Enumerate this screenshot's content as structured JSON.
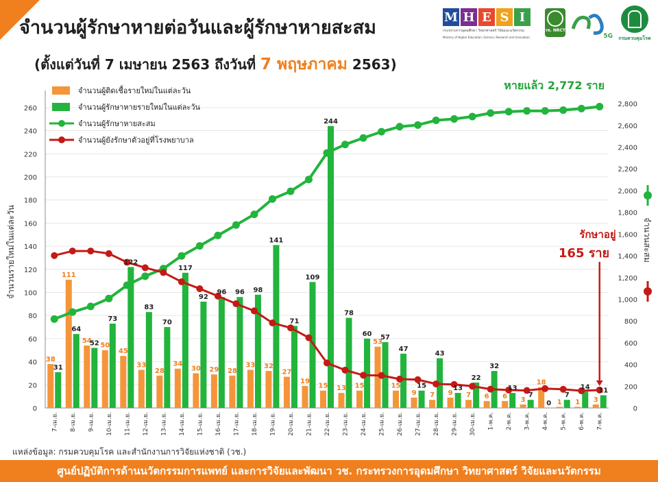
{
  "header": {
    "title": "จำนวนผู้รักษาหายต่อวันและผู้รักษาหายสะสม",
    "subtitle_prefix": "(ตั้งแต่วันที่ 7 เมษายน 2563 ถึงวันที่",
    "subtitle_highlight": "7 พฤษภาคม",
    "subtitle_suffix": "2563)"
  },
  "logos": {
    "mhesi_letters": [
      "M",
      "H",
      "E",
      "S",
      "I"
    ],
    "mhesi_colors": [
      "#1f4e9c",
      "#7a2f8f",
      "#e64a2e",
      "#f0a21c",
      "#3aa04a"
    ],
    "mhesi_caption": "กระทรวงการอุดมศึกษา วิทยาศาสตร์ วิจัยและนวัตกรรม",
    "mhesi_caption_en": "Ministry of Higher Education, Science, Research and Innovation",
    "nrct_label": "วช. NRCT",
    "five_g_label": "5G",
    "ddc_label": "กรมควบคุมโรค"
  },
  "chart_data": {
    "type": "bar+line",
    "categories": [
      "7-เม.ย.",
      "8-เม.ย.",
      "9-เม.ย.",
      "10-เม.ย.",
      "11-เม.ย.",
      "12-เม.ย.",
      "13-เม.ย.",
      "14-เม.ย.",
      "15-เม.ย.",
      "16-เม.ย.",
      "17-เม.ย.",
      "18-เม.ย.",
      "19-เม.ย.",
      "20-เม.ย.",
      "21-เม.ย.",
      "22-เม.ย.",
      "23-เม.ย.",
      "24-เม.ย.",
      "25-เม.ย.",
      "26-เม.ย.",
      "27-เม.ย.",
      "28-เม.ย.",
      "29-เม.ย.",
      "30-เม.ย.",
      "1-พ.ค.",
      "2-พ.ค.",
      "3-พ.ค.",
      "4-พ.ค.",
      "5-พ.ค.",
      "6-พ.ค.",
      "7-พ.ค."
    ],
    "series": [
      {
        "name": "จำนวนผู้ติดเชื้อรายใหม่ในแต่ละวัน",
        "type": "bar",
        "axis": "left",
        "color": "#f5953a",
        "values": [
          38,
          111,
          54,
          50,
          45,
          33,
          28,
          34,
          30,
          29,
          28,
          33,
          32,
          27,
          19,
          15,
          13,
          15,
          53,
          15,
          9,
          7,
          9,
          7,
          6,
          6,
          3,
          18,
          1,
          1,
          3
        ]
      },
      {
        "name": "จำนวนผู้รักษาหายรายใหม่ในแต่ละวัน",
        "type": "bar",
        "axis": "left",
        "color": "#22b43c",
        "values": [
          31,
          64,
          52,
          73,
          122,
          83,
          70,
          117,
          92,
          96,
          96,
          98,
          141,
          71,
          109,
          244,
          78,
          60,
          57,
          47,
          15,
          43,
          13,
          22,
          32,
          13,
          7,
          0,
          7,
          14,
          11
        ]
      },
      {
        "name": "จำนวนผู้รักษาหายสะสม",
        "type": "line",
        "axis": "right",
        "color": "#22b43c",
        "values": [
          818,
          882,
          934,
          1007,
          1129,
          1212,
          1282,
          1399,
          1491,
          1587,
          1683,
          1781,
          1922,
          1993,
          2102,
          2346,
          2424,
          2484,
          2541,
          2588,
          2603,
          2646,
          2659,
          2681,
          2713,
          2726,
          2733,
          2733,
          2740,
          2754,
          2772
        ]
      },
      {
        "name": "จำนวนผู้ยังรักษาตัวอยู่ที่โรงพยาบาล",
        "type": "line",
        "axis": "right",
        "color": "#c41a16",
        "values": [
          1402,
          1444,
          1444,
          1420,
          1340,
          1290,
          1246,
          1161,
          1097,
          1029,
          959,
          893,
          782,
          737,
          646,
          414,
          348,
          301,
          299,
          266,
          260,
          221,
          216,
          200,
          173,
          165,
          161,
          178,
          172,
          158,
          165
        ]
      }
    ],
    "ylabel_left": "จำนวนรายใหม่ในแต่ละวัน",
    "ylabel_right": "จำนวนสะสม",
    "ylim_left": [
      0,
      270
    ],
    "ylim_right": [
      0,
      2870
    ],
    "yticks_left": [
      0,
      20,
      40,
      60,
      80,
      100,
      120,
      140,
      160,
      180,
      200,
      220,
      240,
      260
    ],
    "yticks_right": [
      0,
      200,
      400,
      600,
      800,
      1000,
      1200,
      1400,
      1600,
      1800,
      2000,
      2200,
      2400,
      2600,
      2800
    ],
    "yticks_right_labels": [
      "0",
      "200",
      "400",
      "600",
      "800",
      "1,000",
      "1,200",
      "1,400",
      "1,600",
      "1,800",
      "2,000",
      "2,200",
      "2,400",
      "2,600",
      "2,800"
    ],
    "annotation_recovered": "หายแล้ว 2,772 ราย",
    "annotation_hospital_line1": "รักษาอยู่",
    "annotation_hospital_line2": "165 ราย",
    "legend_position": "top-left"
  },
  "source_note": "แหล่งข้อมูล: กรมควบคุมโรค และสำนักงานการวิจัยแห่งชาติ (วช.)",
  "footer_text": "ศูนย์ปฏิบัติการด้านนวัตกรรมการแพทย์ และการวิจัยและพัฒนา   วช.   กระทรวงการอุดมศึกษา วิทยาศาสตร์ วิจัยและนวัตกรรม"
}
